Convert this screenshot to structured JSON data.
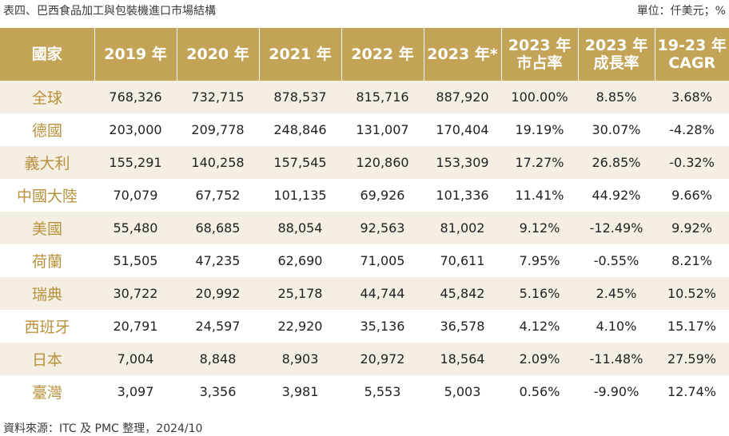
{
  "caption": {
    "title": "表四、巴西食品加工與包裝機進口市場結構",
    "unit": "單位：仟美元；%"
  },
  "table": {
    "headers": [
      [
        "國家"
      ],
      [
        "2019 年"
      ],
      [
        "2020 年"
      ],
      [
        "2021 年"
      ],
      [
        "2022 年"
      ],
      [
        "2023 年*"
      ],
      [
        "2023 年",
        "市占率"
      ],
      [
        "2023 年",
        "成長率"
      ],
      [
        "19-23 年",
        "CAGR"
      ]
    ],
    "rows": [
      [
        "全球",
        "768,326",
        "732,715",
        "878,537",
        "815,716",
        "887,920",
        "100.00%",
        "8.85%",
        "3.68%"
      ],
      [
        "德國",
        "203,000",
        "209,778",
        "248,846",
        "131,007",
        "170,404",
        "19.19%",
        "30.07%",
        "-4.28%"
      ],
      [
        "義大利",
        "155,291",
        "140,258",
        "157,545",
        "120,860",
        "153,309",
        "17.27%",
        "26.85%",
        "-0.32%"
      ],
      [
        "中國大陸",
        "70,079",
        "67,752",
        "101,135",
        "69,926",
        "101,336",
        "11.41%",
        "44.92%",
        "9.66%"
      ],
      [
        "美國",
        "55,480",
        "68,685",
        "88,054",
        "92,563",
        "81,002",
        "9.12%",
        "-12.49%",
        "9.92%"
      ],
      [
        "荷蘭",
        "51,505",
        "47,235",
        "62,690",
        "71,005",
        "70,611",
        "7.95%",
        "-0.55%",
        "8.21%"
      ],
      [
        "瑞典",
        "30,722",
        "20,992",
        "25,178",
        "44,744",
        "45,842",
        "5.16%",
        "2.45%",
        "10.52%"
      ],
      [
        "西班牙",
        "20,791",
        "24,597",
        "22,920",
        "35,136",
        "36,578",
        "4.12%",
        "4.10%",
        "15.17%"
      ],
      [
        "日本",
        "7,004",
        "8,848",
        "8,903",
        "20,972",
        "18,564",
        "2.09%",
        "-11.48%",
        "27.59%"
      ],
      [
        "臺灣",
        "3,097",
        "3,356",
        "3,981",
        "5,553",
        "5,003",
        "0.56%",
        "-9.90%",
        "12.74%"
      ]
    ]
  },
  "source": "資料來源：ITC 及 PMC 整理，2024/10",
  "colors": {
    "header_bg": "#c3a456",
    "country_text": "#b8913c",
    "stripe_bg": "#f5eee2"
  }
}
